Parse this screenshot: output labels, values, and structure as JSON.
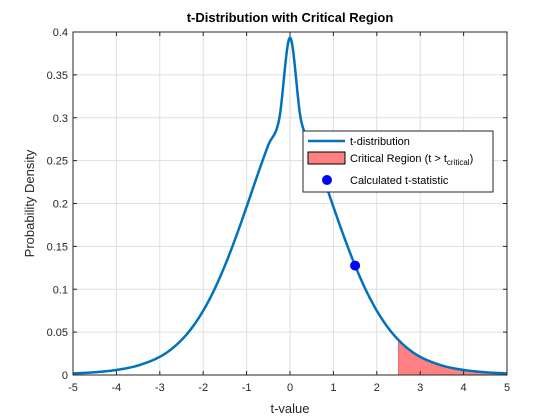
{
  "chart_data": {
    "type": "line",
    "title": "t-Distribution with Critical Region",
    "xlabel": "t-value",
    "ylabel": "Probability Density",
    "xlim": [
      -5,
      5
    ],
    "ylim": [
      0,
      0.4
    ],
    "xticks": [
      "-5",
      "-4",
      "-3",
      "-2",
      "-1",
      "0",
      "1",
      "2",
      "3",
      "4",
      "5"
    ],
    "yticks": [
      "0",
      "0.05",
      "0.1",
      "0.15",
      "0.2",
      "0.25",
      "0.3",
      "0.35",
      "0.4"
    ],
    "grid": true,
    "legend_position": "right",
    "series": [
      {
        "name": "t-distribution",
        "kind": "line",
        "color": "#0072BD",
        "x": [
          -5,
          -4.5,
          -4,
          -3.5,
          -3,
          -2.75,
          -2.5,
          -2.25,
          -2,
          -1.75,
          -1.5,
          -1.25,
          -1,
          -0.75,
          -0.5,
          -0.25,
          0,
          0.25,
          0.5,
          0.75,
          1,
          1.25,
          1.5,
          1.75,
          2,
          2.25,
          2.5,
          2.75,
          3,
          3.5,
          4,
          4.5,
          5
        ],
        "y": [
          0.0018,
          0.0032,
          0.0059,
          0.0111,
          0.0212,
          0.0295,
          0.0408,
          0.0557,
          0.075,
          0.0989,
          0.1276,
          0.1604,
          0.1961,
          0.233,
          0.2681,
          0.2981,
          0.3937,
          0.2981,
          0.2681,
          0.233,
          0.1961,
          0.1604,
          0.1276,
          0.0989,
          0.075,
          0.0557,
          0.0408,
          0.0295,
          0.0212,
          0.0111,
          0.0059,
          0.0032,
          0.0018
        ]
      },
      {
        "name": "Critical Region (t > t",
        "name_sub": "critical",
        "name_suffix": ")",
        "kind": "area",
        "color": "#FF8080",
        "x_from": 2.5,
        "x_to": 5
      },
      {
        "name": "Calculated t-statistic",
        "kind": "scatter",
        "color": "#0000FF",
        "x": [
          1.5
        ],
        "y": [
          0.1276
        ]
      }
    ]
  }
}
